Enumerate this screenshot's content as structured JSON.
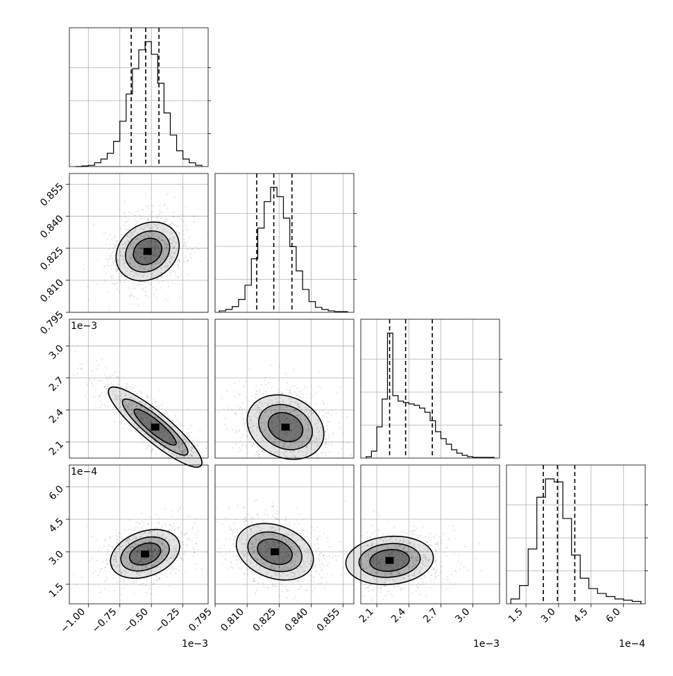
{
  "chart_data": {
    "type": "corner",
    "parameters": [
      {
        "index": 0,
        "range": [
          -1.15,
          -0.05
        ],
        "ticks": [
          -1.0,
          -0.75,
          -0.5,
          -0.25
        ],
        "tick_labels": [
          "−1.00",
          "−0.75",
          "−0.50",
          "−0.25"
        ],
        "offset_label": "1e−3",
        "quantiles": [
          -0.66,
          -0.545,
          -0.44
        ]
      },
      {
        "index": 1,
        "range": [
          0.795,
          0.86
        ],
        "ticks": [
          0.795,
          0.81,
          0.825,
          0.84,
          0.855
        ],
        "tick_labels": [
          "0.795",
          "0.810",
          "0.825",
          "0.840",
          "0.855"
        ],
        "offset_label": "",
        "quantiles": [
          0.8145,
          0.8225,
          0.831
        ]
      },
      {
        "index": 2,
        "range": [
          1.95,
          3.25
        ],
        "ticks": [
          2.1,
          2.4,
          2.7,
          3.0
        ],
        "tick_labels": [
          "2.1",
          "2.4",
          "2.7",
          "3.0"
        ],
        "offset_label": "1e−3",
        "quantiles": [
          2.22,
          2.37,
          2.62
        ]
      },
      {
        "index": 3,
        "range": [
          0.6,
          7.0
        ],
        "ticks": [
          1.5,
          3.0,
          4.5,
          6.0
        ],
        "tick_labels": [
          "1.5",
          "3.0",
          "4.5",
          "6.0"
        ],
        "offset_label": "1e−4",
        "quantiles": [
          2.3,
          2.95,
          3.75
        ]
      }
    ],
    "histograms": [
      {
        "param": 0,
        "bins": [
          -1.1,
          -1.05,
          -1.0,
          -0.95,
          -0.9,
          -0.85,
          -0.8,
          -0.75,
          -0.7,
          -0.65,
          -0.6,
          -0.55,
          -0.5,
          -0.45,
          -0.4,
          -0.35,
          -0.3,
          -0.25,
          -0.2,
          -0.15,
          -0.1
        ],
        "counts": [
          0,
          1,
          2,
          6,
          12,
          21,
          40,
          72,
          115,
          155,
          185,
          198,
          178,
          132,
          85,
          50,
          25,
          12,
          6,
          2
        ]
      },
      {
        "param": 1,
        "bins": [
          0.797,
          0.8,
          0.803,
          0.806,
          0.809,
          0.812,
          0.815,
          0.818,
          0.821,
          0.824,
          0.827,
          0.83,
          0.833,
          0.836,
          0.839,
          0.842,
          0.845,
          0.848,
          0.851,
          0.854,
          0.857
        ],
        "counts": [
          2,
          4,
          8,
          18,
          38,
          75,
          118,
          155,
          175,
          162,
          132,
          92,
          58,
          32,
          15,
          7,
          4,
          2,
          1,
          1
        ]
      },
      {
        "param": 2,
        "bins": [
          2.0,
          2.05,
          2.1,
          2.15,
          2.2,
          2.25,
          2.3,
          2.35,
          2.4,
          2.45,
          2.5,
          2.55,
          2.6,
          2.65,
          2.7,
          2.75,
          2.8,
          2.85,
          2.9,
          2.95,
          3.0,
          3.1,
          3.2
        ],
        "counts": [
          2,
          10,
          45,
          85,
          180,
          90,
          82,
          80,
          78,
          76,
          72,
          66,
          54,
          38,
          28,
          20,
          12,
          7,
          4,
          2,
          1,
          1
        ]
      },
      {
        "param": 3,
        "bins": [
          0.8,
          1.2,
          1.6,
          2.0,
          2.4,
          2.8,
          3.2,
          3.6,
          4.0,
          4.4,
          4.8,
          5.2,
          5.6,
          6.0,
          6.4,
          6.8
        ],
        "counts": [
          8,
          30,
          90,
          175,
          205,
          200,
          140,
          80,
          42,
          25,
          17,
          12,
          8,
          6,
          4
        ]
      }
    ],
    "density_peaks": [
      {
        "row": 1,
        "col": 0,
        "x": -0.53,
        "y": 0.8235
      },
      {
        "row": 2,
        "col": 0,
        "x": -0.47,
        "y": 2.24
      },
      {
        "row": 2,
        "col": 1,
        "x": 0.828,
        "y": 2.24
      },
      {
        "row": 3,
        "col": 0,
        "x": -0.55,
        "y": 2.9
      },
      {
        "row": 3,
        "col": 1,
        "x": 0.823,
        "y": 3.0
      },
      {
        "row": 3,
        "col": 2,
        "x": 2.22,
        "y": 2.6
      }
    ]
  }
}
